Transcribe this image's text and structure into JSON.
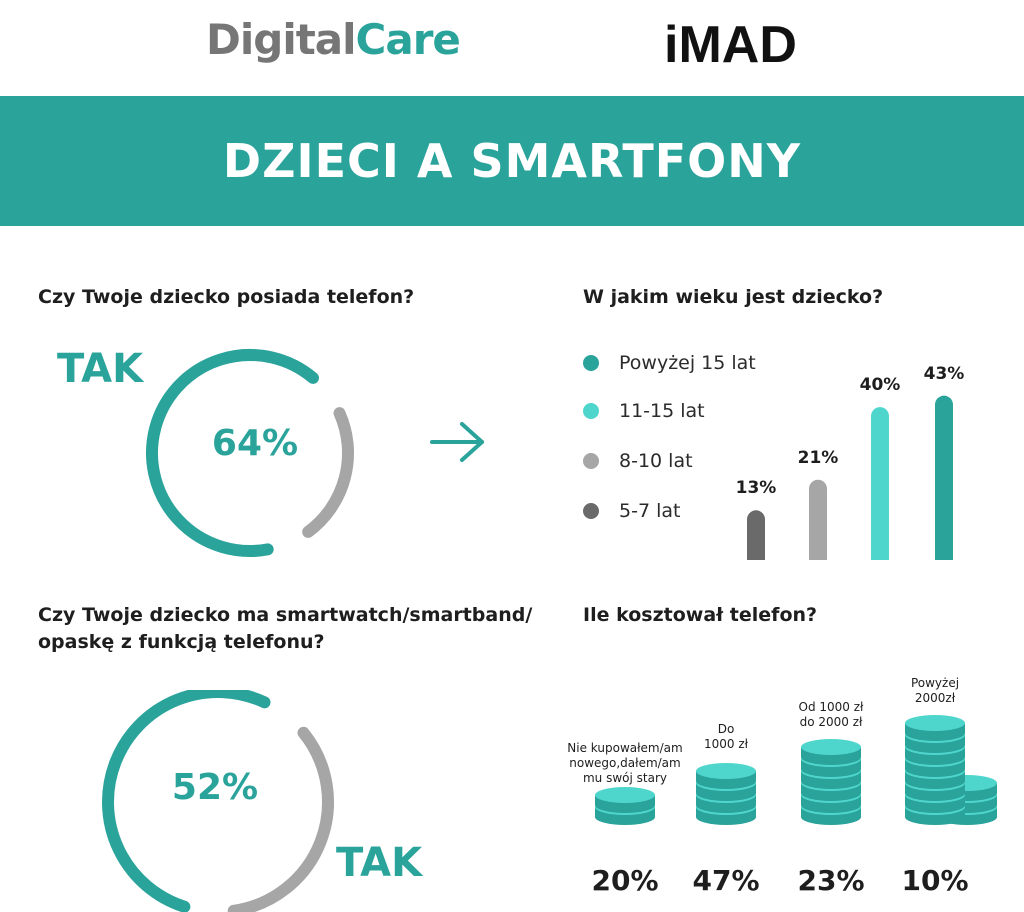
{
  "logos": {
    "digitalcare_part1": "Digital",
    "digitalcare_part2": "Care",
    "imad": "iMAD"
  },
  "banner": {
    "title": "DZIECI A SMARTFONY"
  },
  "colors": {
    "teal": "#2aa39b",
    "light_teal": "#4fd6cc",
    "gray": "#a6a6a6",
    "dark_gray": "#6a6a6a"
  },
  "icons": {
    "arrow": "arrow-right-icon",
    "coin": "coin-stack-icon"
  },
  "chart_data": [
    {
      "type": "pie",
      "question": "Czy Twoje dziecko posiada telefon?",
      "answer_label": "TAK",
      "value_label": "64%",
      "values": [
        64,
        36
      ]
    },
    {
      "type": "bar",
      "question": "W jakim wieku jest dziecko?",
      "categories": [
        "5-7 lat",
        "8-10 lat",
        "11-15 lat",
        "Powyżej 15 lat"
      ],
      "values": [
        13,
        21,
        40,
        43
      ],
      "data_labels": [
        "13%",
        "21%",
        "40%",
        "43%"
      ],
      "colors": [
        "#6a6a6a",
        "#a6a6a6",
        "#4fd6cc",
        "#2aa39b"
      ],
      "legend": [
        "Powyżej 15 lat",
        "11-15 lat",
        "8-10 lat",
        "5-7 lat"
      ],
      "legend_placement": "left"
    },
    {
      "type": "pie",
      "question_line1": "Czy Twoje dziecko ma smartwatch/smartband/",
      "question_line2": "opaskę z funkcją telefonu?",
      "answer_label": "TAK",
      "value_label": "52%",
      "values": [
        52,
        48
      ]
    },
    {
      "type": "bar",
      "question": "Ile kosztował telefon?",
      "categories": [
        "Nie kupowałem/am nowego,dałem/am mu swój stary",
        "Do 1000 zł",
        "Od 1000 zł do 2000 zł",
        "Powyżej 2000zł"
      ],
      "category_labels": [
        "Nie kupowałem/am\nnowego,dałem/am\nmu swój stary",
        "Do\n1000 zł",
        "Od 1000 zł\ndo 2000 zł",
        "Powyżej\n2000zł"
      ],
      "values": [
        20,
        47,
        23,
        10
      ],
      "data_labels": [
        "20%",
        "47%",
        "23%",
        "10%"
      ]
    }
  ]
}
